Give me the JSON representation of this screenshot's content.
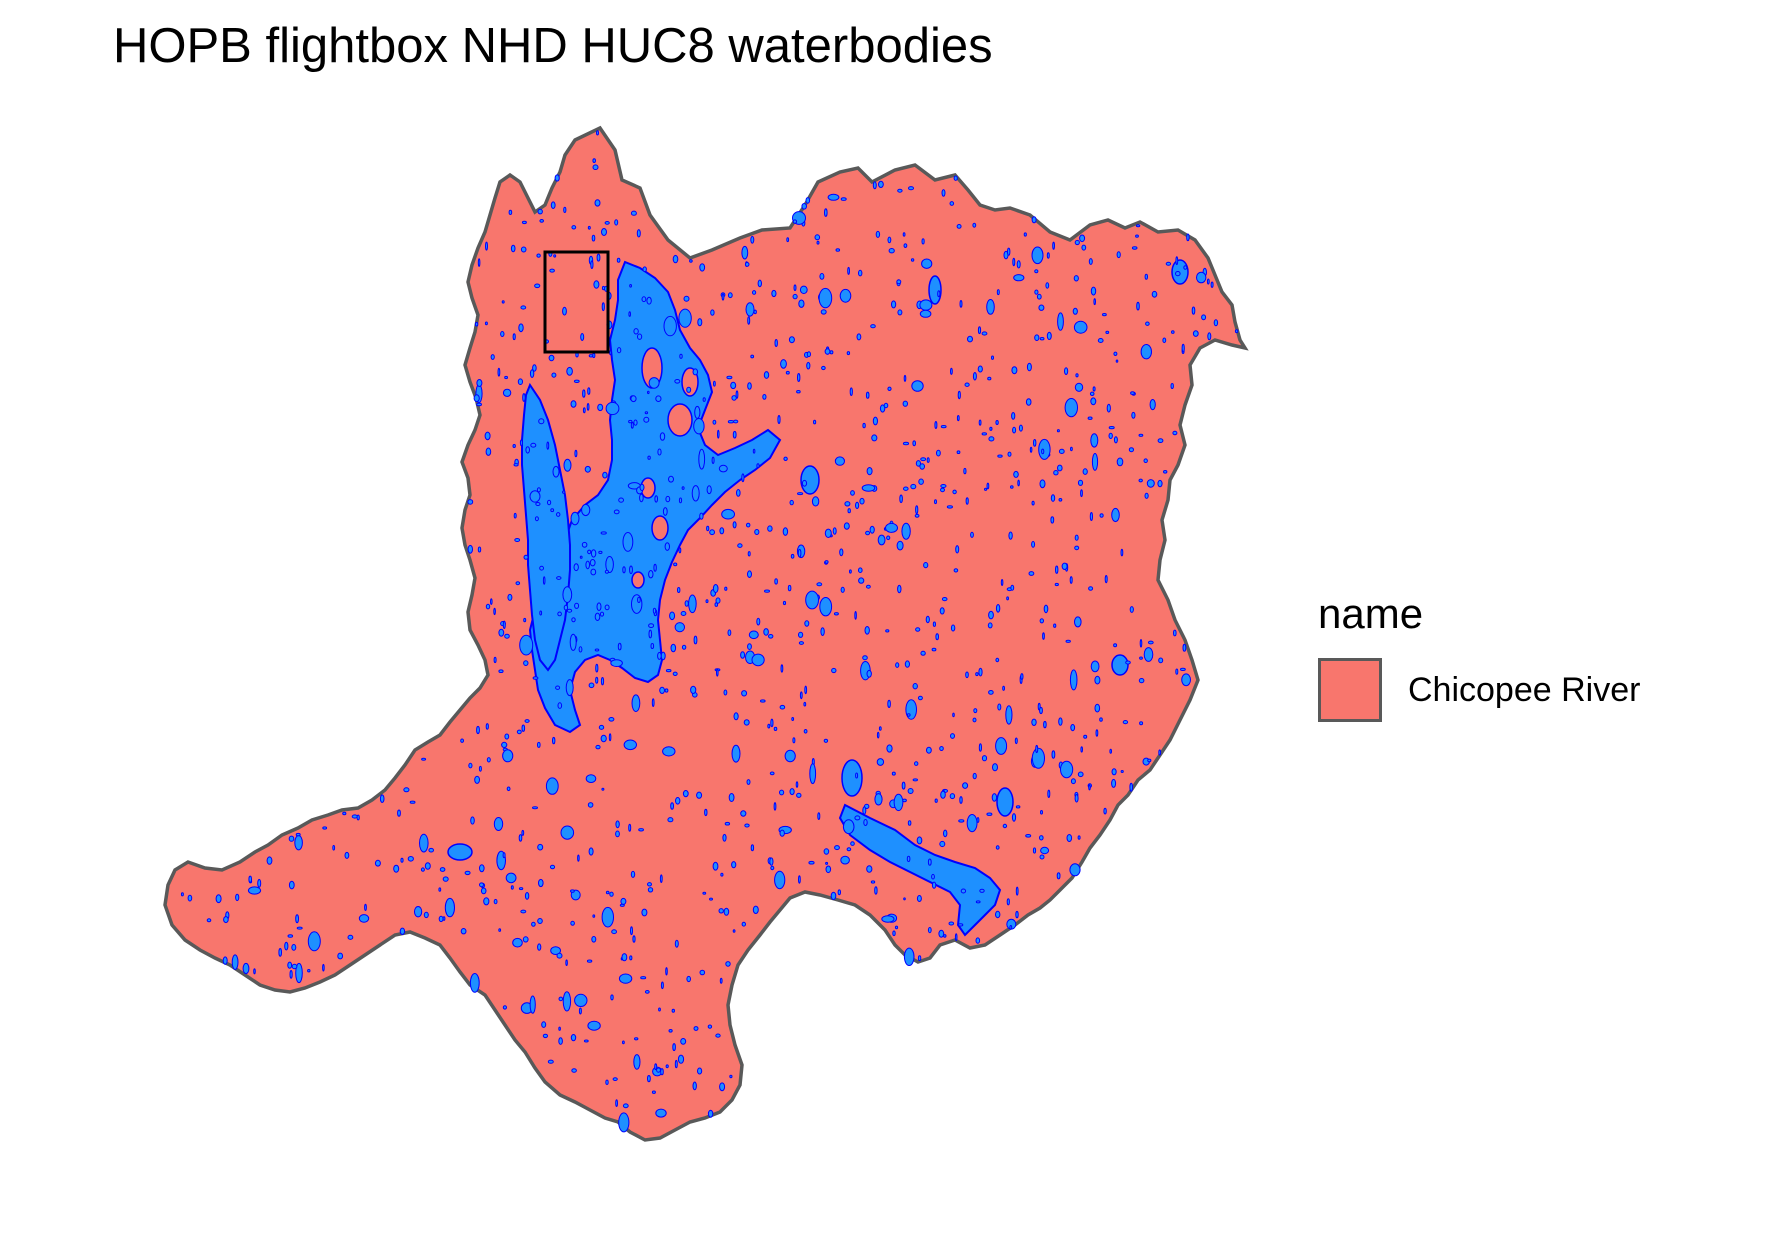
{
  "title": "HOPB flightbox NHD HUC8 waterbodies",
  "legend": {
    "title": "name",
    "items": [
      {
        "label": "Chicopee River",
        "color": "#F8766D"
      }
    ]
  },
  "colors": {
    "watershed_fill": "#F8766D",
    "watershed_outline": "#595959",
    "waterbody_fill": "#1E90FF",
    "waterbody_outline": "#0000FF",
    "flightbox_outline": "#000000"
  }
}
